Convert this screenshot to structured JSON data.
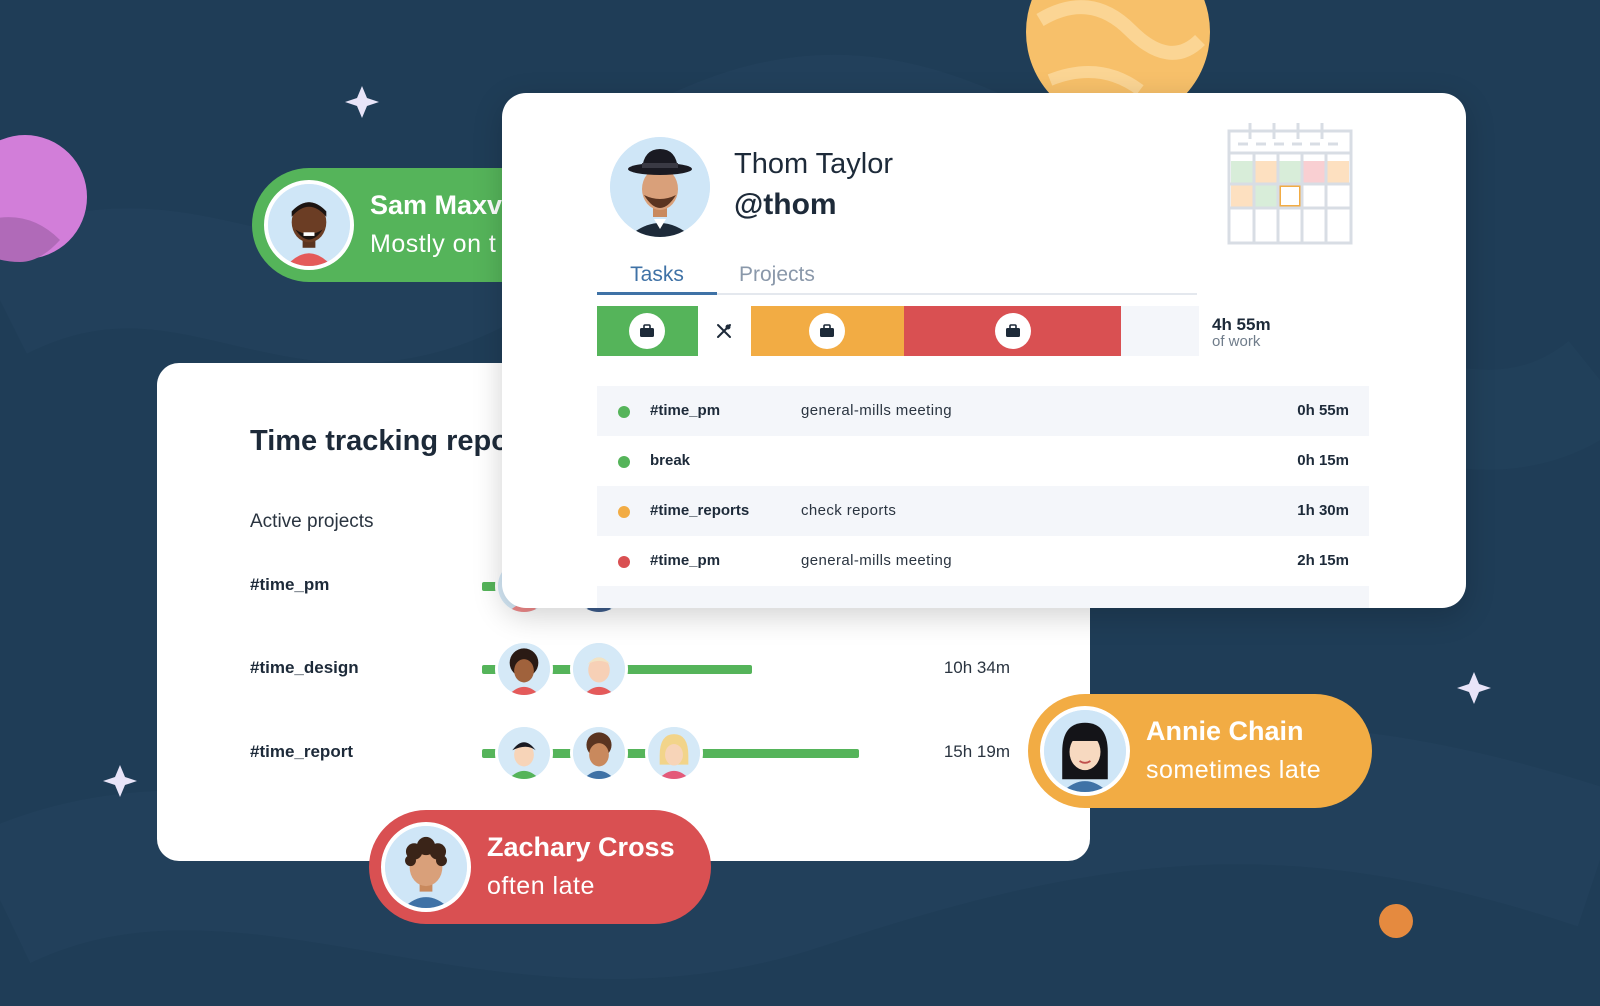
{
  "colors": {
    "background": "#1f3d57",
    "green": "#55b45a",
    "orange": "#f2ac44",
    "red": "#d95052",
    "accent_blue": "#3f72a6"
  },
  "pills": {
    "sam": {
      "name": "Sam Maxv",
      "status": "Mostly on t"
    },
    "annie": {
      "name": "Annie Chain",
      "status": "sometimes late"
    },
    "zachary": {
      "name": "Zachary Cross",
      "status": "often late"
    }
  },
  "report": {
    "title": "Time tracking repo",
    "subtitle": "Active projects",
    "projects": [
      {
        "name": "#time_pm",
        "time": "",
        "avatars": [
          "avatar-woman-brown-hair",
          "avatar-woman-black-hair",
          "avatar-partial",
          "avatar-partial"
        ]
      },
      {
        "name": "#time_design",
        "time": "10h 34m",
        "avatars": [
          "avatar-woman-curly-hair",
          "avatar-man-blond"
        ]
      },
      {
        "name": "#time_report",
        "time": "15h 19m",
        "avatars": [
          "avatar-man-black-hair",
          "avatar-man-curly-hair",
          "avatar-woman-blonde"
        ]
      }
    ]
  },
  "profile": {
    "name": "Thom Taylor",
    "handle": "@thom",
    "tabs": [
      {
        "label": "Tasks",
        "active": true
      },
      {
        "label": "Projects",
        "active": false
      }
    ],
    "timeline": [
      {
        "kind": "work",
        "icon": "briefcase-icon",
        "color": "#55b45a"
      },
      {
        "kind": "break",
        "icon": "utensils-icon",
        "color": "#ffffff"
      },
      {
        "kind": "work",
        "icon": "briefcase-icon",
        "color": "#f2ac44"
      },
      {
        "kind": "work",
        "icon": "briefcase-icon",
        "color": "#d95052"
      }
    ],
    "work_total": "4h 55m",
    "work_label": "of work",
    "tasks": [
      {
        "tag": "#time_pm",
        "desc": "general-mills meeting",
        "duration": "0h 55m",
        "color": "#55b45a"
      },
      {
        "tag": "break",
        "desc": "",
        "duration": "0h 15m",
        "color": "#55b45a"
      },
      {
        "tag": "#time_reports",
        "desc": "check reports",
        "duration": "1h 30m",
        "color": "#f2ac44"
      },
      {
        "tag": "#time_pm",
        "desc": "general-mills meeting",
        "duration": "2h 15m",
        "color": "#d95052"
      }
    ]
  }
}
